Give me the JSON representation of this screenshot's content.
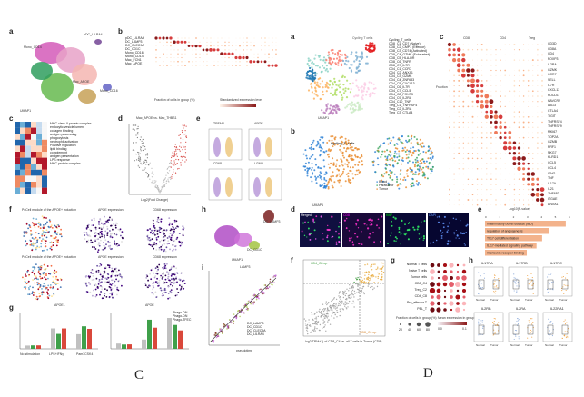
{
  "figure_captions": {
    "left": "C",
    "right": "D"
  },
  "left_figure": {
    "panel_labels": [
      "a",
      "b",
      "c",
      "d",
      "e",
      "f",
      "g",
      "h",
      "i"
    ],
    "a": {
      "clusters": [
        "pDC_LILRA4",
        "DC_LAMP3",
        "DC_CD1C",
        "Mono_CD14",
        "Mac_APOE",
        "Mac_FCN1",
        "DC_CLEC9A",
        "Mono_CD16"
      ],
      "axis": "UMAP1"
    },
    "b": {
      "rows": [
        "pDC_LILRA4",
        "DC_LAMP3",
        "DC_CLEC9A",
        "DC_CD1C",
        "Mono_CD16",
        "Mono_CD14",
        "Mac_FCN1",
        "Mac_APOE"
      ],
      "legend_size": "Fraction of cells in group (%)",
      "legend_color": "Standardized expression level"
    },
    "c": {
      "terms": [
        "MHC class II protein complex",
        "endocytic vesicle lumen",
        "collagen binding",
        "antigen processing",
        "phagocytosis",
        "neutrophil activation",
        "Positive regulation",
        "lipid binding",
        "complement",
        "antigen presentation",
        "LPS response",
        "MHC protein complex"
      ]
    },
    "d": {
      "title": "Mac_APOE vs. Mac_THBS1",
      "xlabel": "Log2(Fold Change)",
      "ylabel": "-Log10(Adjusted P value)"
    },
    "e": {
      "genes": [
        "TREM2",
        "APOE",
        "CD68",
        "LGMN"
      ],
      "groups": [
        "Mac_APOE",
        "Mac_THBS1"
      ]
    },
    "f": {
      "labels": [
        "PoCell module of the APOE+ induction",
        "APOE expression",
        "CD68 expression",
        "PoCell module of the APOE+ induction",
        "APOE expression",
        "CD68 expression"
      ]
    },
    "g": {
      "titles": [
        "APOE1",
        "APOE"
      ],
      "legend": [
        "Phago-DN",
        "Phago-DN",
        "Phago-TFEC"
      ],
      "xticks": [
        "No stimulation",
        "LPS+IFNγ",
        "Pam3CSK4"
      ]
    },
    "h": {
      "clusters": [
        "pDC_LILRA4",
        "DC_LAMP3",
        "DC_CD1C"
      ],
      "axis": "UMAP1"
    },
    "i": {
      "title": "LAMP3",
      "legend": [
        "DC_LAMP3",
        "DC_CD1C",
        "DC_CLEC9A",
        "DC_LILRA4"
      ],
      "xlabel": "pseudotime"
    }
  },
  "right_figure": {
    "panel_labels": [
      "a",
      "b",
      "c",
      "d",
      "e",
      "f",
      "g",
      "h"
    ],
    "a": {
      "title": "Cycling T cells",
      "legend": [
        "Cycling_T_cells",
        "CD8_C1_CD7 (Naive)",
        "CD8_C2_CMP1 (Effector)",
        "CD8_C3_CD74 (Activated)",
        "CD8_C4_GZMK (Exhausted)",
        "CD8_C5_HLA-DR",
        "CD8_C6_TNFR",
        "CD8_C7_IL7R",
        "CD4_C1_CCR7",
        "CD4_C2_ANXA1",
        "CD4_C3_GZMK",
        "CD4_C4_ZNF683",
        "CD4_C5_CXCL13",
        "CD4_C6_IL7R",
        "CD4_C7_CCL5",
        "CD4_C8_FOXP3",
        "CD4_C9_IL2RA",
        "CD4_C10_TNF",
        "Treg_C1_TNFRSF4",
        "Treg_C2_IL2RA",
        "Treg_C3_CTLA4"
      ],
      "cluster_labels": [
        "CD8_C4",
        "CD8_C5",
        "CD8_C1",
        "CD4_C1",
        "CD4_C2",
        "CD4_C3",
        "Treg_C1",
        "Treg_C2"
      ],
      "axis": "UMAP1"
    },
    "b": {
      "overlay_label": "Cycling_T_cells",
      "legend": [
        "Blood",
        "Paratumor",
        "Tumor"
      ],
      "axis": "UMAP1"
    },
    "c": {
      "groups": [
        "CD8",
        "CD4",
        "Treg"
      ],
      "legend_size": "Fraction",
      "markers": [
        "CD3D",
        "CD8A",
        "CD4",
        "FOXP3",
        "IL2RA",
        "GZMK",
        "CCR7",
        "SELL",
        "IL7R",
        "CXCL13",
        "PDCD1",
        "HAVCR2",
        "LAG3",
        "CTLA4",
        "TIGIT",
        "TNFRSF4",
        "TNFRSF9",
        "MKI67",
        "TOP2A",
        "GZMB",
        "PRF1",
        "NKG7",
        "KLRD1",
        "CCL5",
        "CCL4",
        "IFNG",
        "TNF",
        "IL17A",
        "IL21",
        "ZNF683",
        "ITGAE",
        "ANXA1"
      ]
    },
    "d": {
      "channels": [
        "Merged",
        "CD8",
        "Ki67",
        "DAPI"
      ]
    },
    "e": {
      "axis": "-log10(P-value)",
      "ticks": [
        "0",
        "1",
        "2",
        "3",
        "4",
        "5",
        "6"
      ],
      "terms": [
        "Inflammatory bowel disease (IBD)",
        "regulation of angiogenesis",
        "Th17 cell differentiation",
        "IL-17-mediated signaling pathway",
        "interleukin receptor binding"
      ],
      "values": [
        5.8,
        4.6,
        4.1,
        3.7,
        3.0
      ]
    },
    "f": {
      "xlabel": "log2(TPM+1) of CD8_C4 vs. all T cells in Tumor (CD8)",
      "ylabel": "log2(TPM+1) of CD4_C8 vs. all T cells",
      "quadrants": [
        "CD4_C8 up",
        "CD8_C4 up"
      ]
    },
    "g": {
      "rows": [
        "Normal T cells",
        "Naive T cells",
        "Tumor cells",
        "CD8_C4",
        "Treg_C2",
        "CD4_C8",
        "Pro_effector T",
        "PBL_T"
      ],
      "cols": [
        "IL17RA",
        "IL17RB",
        "IL17RC",
        "IL17RE",
        "IL2RA",
        "IL2RB"
      ],
      "legend_size": "Fraction of cells in group (%)",
      "size_ticks": [
        "20",
        "40",
        "60",
        "80"
      ],
      "legend_color": "Mean expression in group",
      "color_ticks": [
        "0.0",
        "0.1"
      ]
    },
    "h": {
      "genes": [
        "IL17RA",
        "IL17RB",
        "IL17RC",
        "IL2RB",
        "IL2RA",
        "IL22RA1"
      ],
      "xticks": [
        "Normal",
        "Tumor"
      ],
      "ylabel": "TPM"
    }
  }
}
